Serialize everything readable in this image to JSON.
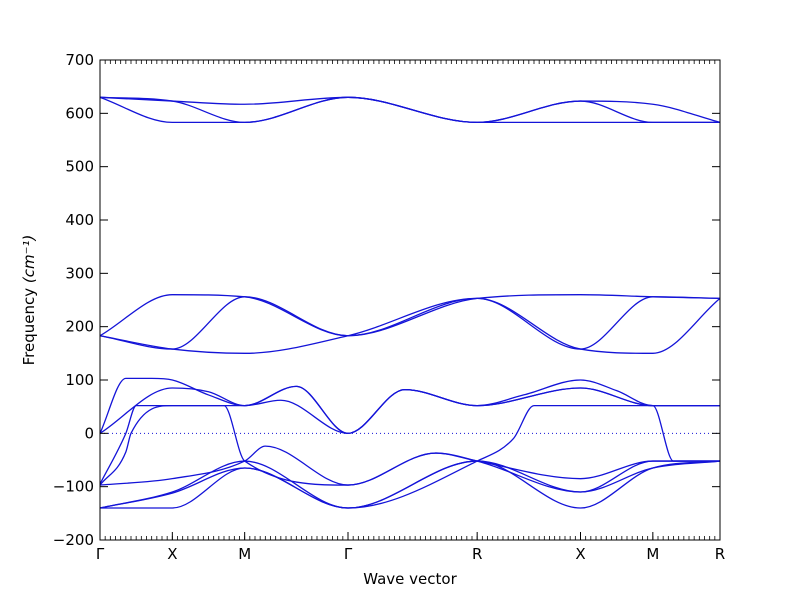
{
  "chart_data": {
    "type": "line",
    "xlabel": "Wave vector",
    "ylabel": "Frequency ",
    "ylabel_unit": "(cm⁻¹)",
    "ylim": [
      -200,
      700
    ],
    "yticks": [
      -200,
      -100,
      0,
      100,
      200,
      300,
      400,
      500,
      600,
      700
    ],
    "xlim": [
      0,
      6
    ],
    "high_symmetry_points": [
      {
        "label": "Γ",
        "x": 0
      },
      {
        "label": "X",
        "x": 0.7
      },
      {
        "label": "M",
        "x": 1.4
      },
      {
        "label": "Γ",
        "x": 2.4
      },
      {
        "label": "R",
        "x": 3.65
      },
      {
        "label": "X",
        "x": 4.65
      },
      {
        "label": "M",
        "x": 5.35
      },
      {
        "label": "R",
        "x": 6
      }
    ],
    "zero_line": true,
    "series_color": "#1414d8",
    "series": [
      {
        "x": [
          0,
          0.7,
          1.4,
          2.4,
          3.65,
          4.65,
          5.35,
          6
        ],
        "y": [
          630,
          623,
          617,
          630,
          583,
          623,
          617,
          583
        ]
      },
      {
        "x": [
          0,
          0.7,
          1.4,
          2.4,
          3.65,
          4.65,
          5.35,
          6
        ],
        "y": [
          630,
          583,
          583,
          630,
          583,
          583,
          583,
          583
        ]
      },
      {
        "x": [
          0,
          0.7,
          1.4,
          2.4,
          3.65,
          4.65,
          5.35,
          6
        ],
        "y": [
          630,
          623,
          583,
          630,
          583,
          623,
          583,
          583
        ]
      },
      {
        "x": [
          0,
          0.7,
          1.4,
          2.4,
          3.65,
          4.65,
          5.35,
          6
        ],
        "y": [
          183,
          260,
          256,
          183,
          253,
          260,
          256,
          253
        ]
      },
      {
        "x": [
          0,
          0.7,
          1.4,
          2.4,
          3.65,
          4.65,
          5.35,
          6
        ],
        "y": [
          183,
          158,
          256,
          183,
          253,
          158,
          256,
          253
        ]
      },
      {
        "x": [
          0,
          0.7,
          1.4,
          2.4,
          3.65,
          4.65,
          5.35,
          6
        ],
        "y": [
          183,
          158,
          150,
          183,
          253,
          158,
          150,
          253
        ]
      },
      {
        "x": [
          0,
          0.25,
          0.5,
          0.7,
          1.05,
          1.4,
          1.9,
          2.4,
          2.95,
          3.65,
          4.65,
          5.35,
          6
        ],
        "y": [
          0,
          103,
          103,
          100,
          72,
          52,
          88,
          0,
          82,
          52,
          85,
          52,
          52
        ]
      },
      {
        "x": [
          0,
          0.7,
          1.05,
          1.4,
          1.75,
          2.4,
          2.95,
          3.65,
          4.1,
          4.65,
          5.0,
          5.35,
          6
        ],
        "y": [
          0,
          85,
          78,
          52,
          62,
          0,
          82,
          52,
          72,
          100,
          80,
          52,
          52
        ]
      },
      {
        "x": [
          0,
          0.25,
          0.35,
          0.7,
          1.4,
          1.9,
          2.4,
          2.95,
          3.65,
          4.65,
          5.35,
          6
        ],
        "y": [
          -95,
          0,
          52,
          52,
          52,
          88,
          0,
          82,
          52,
          85,
          52,
          52
        ]
      },
      {
        "x": [
          0,
          0.7,
          1.4,
          1.6,
          2.4,
          3.25,
          3.65,
          4.65,
          5.35,
          6
        ],
        "y": [
          -97,
          -85,
          -52,
          -24,
          -97,
          -37,
          -52,
          -85,
          -52,
          -52
        ]
      },
      {
        "x": [
          0,
          0.25,
          0.3,
          0.7,
          1.2,
          1.4,
          2.4,
          3.25,
          3.65,
          4.65,
          5.35,
          6
        ],
        "y": [
          -97,
          -35,
          0,
          52,
          52,
          -52,
          -97,
          -37,
          -52,
          -110,
          -52,
          -52
        ]
      },
      {
        "x": [
          0,
          0.7,
          1.4,
          2.4,
          3.65,
          4.0,
          4.2,
          4.65,
          5.35,
          5.55,
          6
        ],
        "y": [
          -140,
          -110,
          -52,
          -140,
          -52,
          -10,
          52,
          52,
          52,
          -52,
          -52
        ]
      },
      {
        "x": [
          0,
          0.7,
          1.4,
          2.4,
          3.65,
          4.65,
          5.35,
          6
        ],
        "y": [
          -140,
          -140,
          -65,
          -140,
          -52,
          -140,
          -65,
          -52
        ]
      },
      {
        "x": [
          0,
          0.7,
          1.4,
          2.4,
          3.65,
          4.65,
          5.35,
          6
        ],
        "y": [
          -140,
          -112,
          -65,
          -140,
          -52,
          -110,
          -65,
          -52
        ]
      }
    ]
  }
}
